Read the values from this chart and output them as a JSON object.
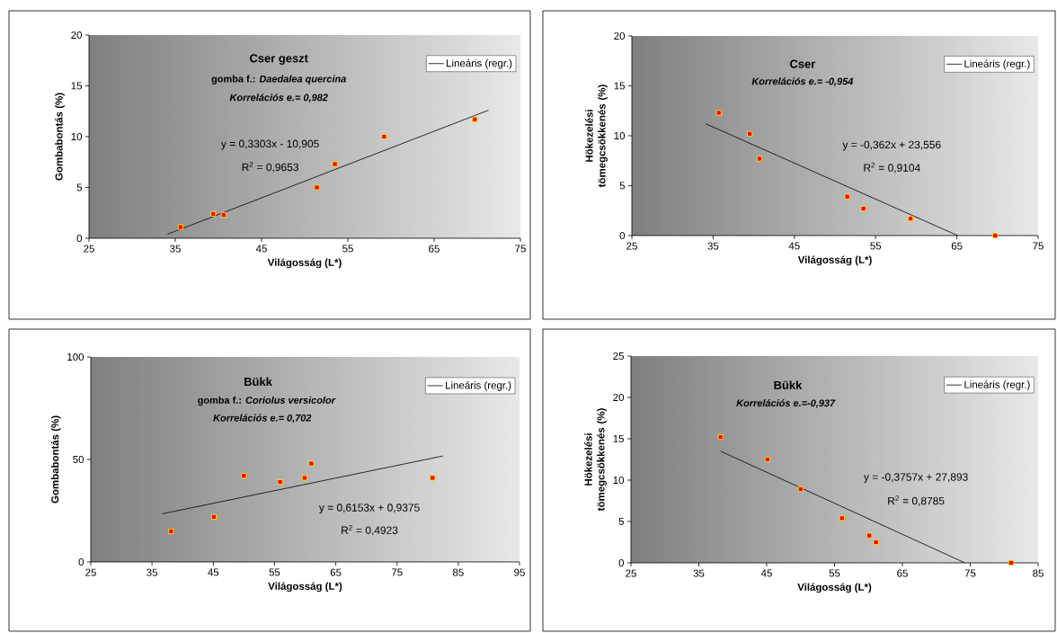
{
  "chart_data": [
    {
      "type": "scatter",
      "title": "Cser geszt",
      "subtitle": "gomba f.: *Daedalea quercina*",
      "xlabel": "Világosság (L*)",
      "ylabel": "Gombabontás (%)",
      "xlim": [
        25,
        75
      ],
      "ylim": [
        0,
        20
      ],
      "xticks": [
        25,
        35,
        45,
        55,
        65,
        75
      ],
      "yticks": [
        0,
        5,
        10,
        15,
        20
      ],
      "legend": "top right",
      "marker": "square",
      "annotations": [
        "Korrelációs e.= 0,982",
        "y = 0,3303x - 10,905",
        "R$^{2}$ = 0,9653"
      ],
      "series": [
        {
          "color": "#ff0000",
          "x": [
            35.6,
            39.4,
            40.6,
            51.4,
            53.5,
            59.2,
            69.7
          ],
          "values": [
            1.1,
            2.4,
            2.3,
            5.0,
            7.3,
            10.0,
            11.7
          ]
        },
        {
          "type": "line",
          "name": "Lineáris (regr.)",
          "color": "#000000",
          "marker": "none",
          "x": [
            34.1,
            71.3
          ],
          "values": [
            0.4,
            12.6
          ]
        }
      ]
    },
    {
      "type": "scatter",
      "title": "Cser",
      "xlabel": "Világosság (L*)",
      "ylabel": "Hökezelési tömegcsökkenés (%)",
      "xlim": [
        25,
        75
      ],
      "ylim": [
        0,
        20
      ],
      "xticks": [
        25,
        35,
        45,
        55,
        65,
        75
      ],
      "yticks": [
        0,
        5,
        10,
        15,
        20
      ],
      "legend": "top right",
      "marker": "square",
      "annotations": [
        "Korrelációs e.= -0,954",
        "y = -0,362x + 23,556",
        "R$^{2}$ = 0,9104"
      ],
      "series": [
        {
          "color": "#ff0000",
          "x": [
            35.7,
            39.5,
            40.7,
            51.5,
            53.5,
            59.3,
            69.7
          ],
          "values": [
            12.3,
            10.2,
            7.7,
            3.9,
            2.7,
            1.7,
            0.0
          ]
        },
        {
          "type": "line",
          "name": "Lineáris (regr.)",
          "color": "#000000",
          "marker": "none",
          "x": [
            34.1,
            65.1
          ],
          "values": [
            11.2,
            0.0
          ]
        }
      ]
    },
    {
      "type": "scatter",
      "title": "Bükk",
      "subtitle": "gomba f.: *Coriolus versicolor*",
      "xlabel": "Világosság (L*)",
      "ylabel": "Gombabontás (%)",
      "xlim": [
        25,
        95
      ],
      "ylim": [
        0,
        100
      ],
      "xticks": [
        25,
        35,
        45,
        55,
        65,
        75,
        85,
        95
      ],
      "yticks": [
        0,
        50,
        100
      ],
      "legend": "top right",
      "marker": "square",
      "annotations": [
        "Korrelációs e.= 0,702",
        "y = 0,6153x + 0,9375",
        "R$^{2}$ = 0,4923"
      ],
      "series": [
        {
          "color": "#ff0000",
          "x": [
            38.1,
            45.1,
            50.0,
            55.9,
            59.9,
            61.0,
            80.8
          ],
          "values": [
            15,
            22,
            42,
            39,
            41,
            48,
            41
          ]
        },
        {
          "type": "line",
          "name": "Lineáris (regr.)",
          "color": "#000000",
          "marker": "none",
          "x": [
            36.7,
            82.5
          ],
          "values": [
            23.5,
            51.7
          ]
        }
      ]
    },
    {
      "type": "scatter",
      "title": "Bükk",
      "xlabel": "Világosság (L*)",
      "ylabel": "Hökezelési tömegcsökkenés (%)",
      "xlim": [
        25,
        85
      ],
      "ylim": [
        0,
        25
      ],
      "xticks": [
        25,
        35,
        45,
        55,
        65,
        75,
        85
      ],
      "yticks": [
        0,
        5,
        10,
        15,
        20,
        25
      ],
      "legend": "top right",
      "marker": "square",
      "annotations": [
        "Korrelációs e.=-0,937",
        "y = -0,3757x + 27,893",
        "R$^{2}$ = 0,8785"
      ],
      "series": [
        {
          "color": "#ff0000",
          "x": [
            38.2,
            45.1,
            50.0,
            56.1,
            60.1,
            61.1,
            81.0
          ],
          "values": [
            15.2,
            12.5,
            8.9,
            5.4,
            3.3,
            2.5,
            0.0
          ]
        },
        {
          "type": "line",
          "name": "Lineáris (regr.)",
          "color": "#000000",
          "marker": "none",
          "x": [
            38.2,
            74.2
          ],
          "values": [
            13.5,
            0.0
          ]
        }
      ]
    }
  ]
}
